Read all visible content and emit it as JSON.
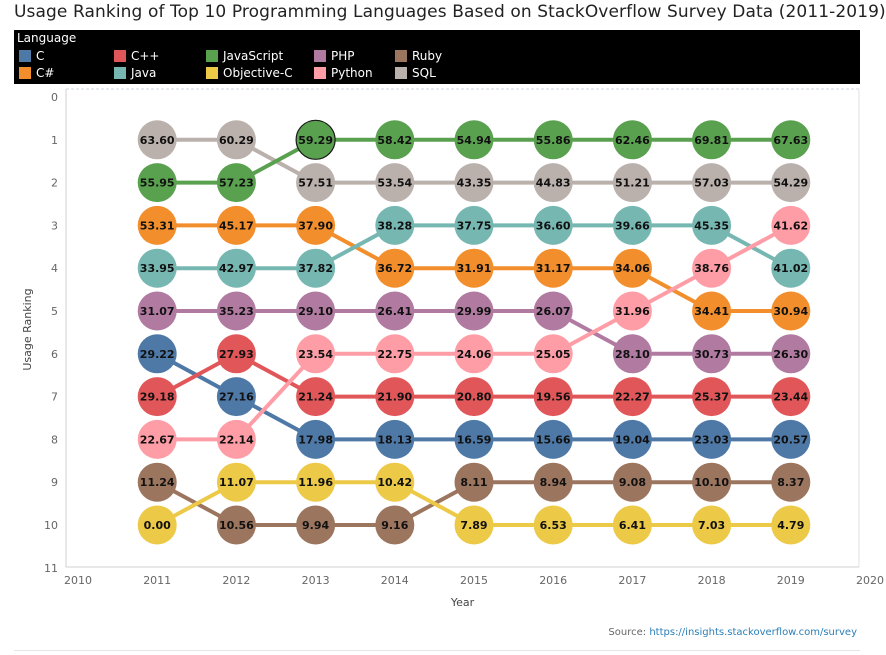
{
  "title": "Usage Ranking of Top 10 Programming Languages Based on StackOverflow Survey Data (2011-2019)",
  "legend": {
    "title": "Language",
    "items": [
      {
        "name": "C",
        "color": "#4e79a7"
      },
      {
        "name": "C#",
        "color": "#f28e2b"
      },
      {
        "name": "C++",
        "color": "#e15759"
      },
      {
        "name": "Java",
        "color": "#76b7b2"
      },
      {
        "name": "JavaScript",
        "color": "#59a14f"
      },
      {
        "name": "Objective-C",
        "color": "#edc948"
      },
      {
        "name": "PHP",
        "color": "#b07aa1"
      },
      {
        "name": "Python",
        "color": "#ff9da7"
      },
      {
        "name": "Ruby",
        "color": "#9c755f"
      },
      {
        "name": "SQL",
        "color": "#bab0ac"
      }
    ]
  },
  "source": {
    "prefix": "Source: ",
    "link": "https://insights.stackoverflow.com/survey"
  },
  "chart_data": {
    "type": "line",
    "title": "Usage Ranking of Top 10 Programming Languages Based on StackOverflow Survey Data (2011-2019)",
    "xlabel": "Year",
    "ylabel": "Usage Ranking",
    "xlim": [
      2010,
      2020
    ],
    "ylim": [
      0,
      11
    ],
    "y_reversed": true,
    "x_ticks": [
      2010,
      2011,
      2012,
      2013,
      2014,
      2015,
      2016,
      2017,
      2018,
      2019,
      2020
    ],
    "y_ticks": [
      0,
      1,
      2,
      3,
      4,
      5,
      6,
      7,
      8,
      9,
      10,
      11
    ],
    "x": [
      2011,
      2012,
      2013,
      2014,
      2015,
      2016,
      2017,
      2018,
      2019
    ],
    "highlighted": {
      "series": "JavaScript",
      "year": 2013
    },
    "series": [
      {
        "name": "SQL",
        "color": "#bab0ac",
        "rank": [
          1,
          1,
          2,
          2,
          2,
          2,
          2,
          2,
          2
        ],
        "value": [
          "63.60",
          "60.29",
          "57.51",
          "53.54",
          "43.35",
          "44.83",
          "51.21",
          "57.03",
          "54.29"
        ]
      },
      {
        "name": "JavaScript",
        "color": "#59a14f",
        "rank": [
          2,
          2,
          1,
          1,
          1,
          1,
          1,
          1,
          1
        ],
        "value": [
          "55.95",
          "57.23",
          "59.29",
          "58.42",
          "54.94",
          "55.86",
          "62.46",
          "69.81",
          "67.63"
        ]
      },
      {
        "name": "C#",
        "color": "#f28e2b",
        "rank": [
          3,
          3,
          3,
          4,
          4,
          4,
          4,
          5,
          5
        ],
        "value": [
          "53.31",
          "45.17",
          "37.90",
          "36.72",
          "31.91",
          "31.17",
          "34.06",
          "34.41",
          "30.94"
        ]
      },
      {
        "name": "Java",
        "color": "#76b7b2",
        "rank": [
          4,
          4,
          4,
          3,
          3,
          3,
          3,
          3,
          4
        ],
        "value": [
          "33.95",
          "42.97",
          "37.82",
          "38.28",
          "37.75",
          "36.60",
          "39.66",
          "45.35",
          "41.02"
        ]
      },
      {
        "name": "PHP",
        "color": "#b07aa1",
        "rank": [
          5,
          5,
          5,
          5,
          5,
          5,
          6,
          6,
          6
        ],
        "value": [
          "31.07",
          "35.23",
          "29.10",
          "26.41",
          "29.99",
          "26.07",
          "28.10",
          "30.73",
          "26.30"
        ]
      },
      {
        "name": "C",
        "color": "#4e79a7",
        "rank": [
          6,
          7,
          8,
          8,
          8,
          8,
          8,
          8,
          8
        ],
        "value": [
          "29.22",
          "27.16",
          "17.98",
          "18.13",
          "16.59",
          "15.66",
          "19.04",
          "23.03",
          "20.57"
        ]
      },
      {
        "name": "C++",
        "color": "#e15759",
        "rank": [
          7,
          6,
          7,
          7,
          7,
          7,
          7,
          7,
          7
        ],
        "value": [
          "29.18",
          "27.93",
          "21.24",
          "21.90",
          "20.80",
          "19.56",
          "22.27",
          "25.37",
          "23.44"
        ]
      },
      {
        "name": "Python",
        "color": "#ff9da7",
        "rank": [
          8,
          8,
          6,
          6,
          6,
          6,
          5,
          4,
          3
        ],
        "value": [
          "22.67",
          "22.14",
          "23.54",
          "22.75",
          "24.06",
          "25.05",
          "31.96",
          "38.76",
          "41.62"
        ]
      },
      {
        "name": "Ruby",
        "color": "#9c755f",
        "rank": [
          9,
          10,
          10,
          10,
          9,
          9,
          9,
          9,
          9
        ],
        "value": [
          "11.24",
          "10.56",
          "9.94",
          "9.16",
          "8.11",
          "8.94",
          "9.08",
          "10.10",
          "8.37"
        ]
      },
      {
        "name": "Objective-C",
        "color": "#edc948",
        "rank": [
          10,
          9,
          9,
          9,
          10,
          10,
          10,
          10,
          10
        ],
        "value": [
          "0.00",
          "11.07",
          "11.96",
          "10.42",
          "7.89",
          "6.53",
          "6.41",
          "7.03",
          "4.79"
        ]
      }
    ]
  }
}
